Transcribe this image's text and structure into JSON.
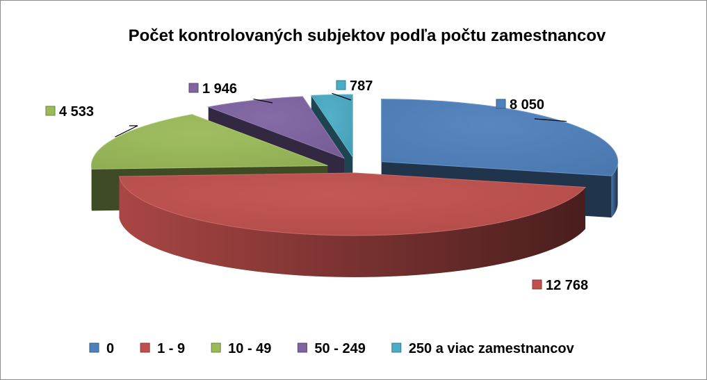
{
  "chart_data": {
    "type": "pie",
    "title": "Počet kontrolovaných subjektov podľa počtu zamestnancov",
    "categories": [
      "0",
      "1 - 9",
      "10 - 49",
      "50 - 249",
      "250 a viac zamestnancov"
    ],
    "values": [
      8050,
      12768,
      4533,
      1946,
      787
    ],
    "value_labels": [
      "8 050",
      "12 768",
      "4 533",
      "1 946",
      "787"
    ],
    "colors": [
      "#4F81BD",
      "#C0504D",
      "#9BBB59",
      "#8064A2",
      "#4BACC6"
    ],
    "style": "3d-exploded",
    "legend_position": "bottom"
  }
}
